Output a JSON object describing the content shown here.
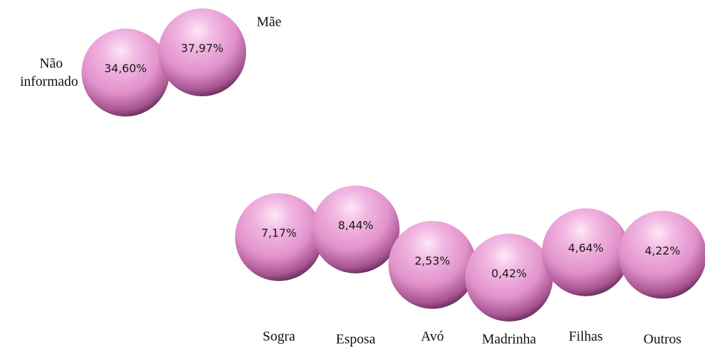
{
  "chart_data": {
    "type": "scatter",
    "categories": [
      "Não informado",
      "Mãe",
      "Sogra",
      "Esposa",
      "Avó",
      "Madrinha",
      "Filhas",
      "Outros"
    ],
    "values": [
      34.6,
      37.97,
      7.17,
      8.44,
      2.53,
      0.42,
      4.64,
      4.22
    ],
    "value_labels": [
      "34,60%",
      "37,97%",
      "7,17%",
      "8,44%",
      "2,53%",
      "0,42%",
      "4,64%",
      "4,22%"
    ],
    "color": "#e89bd3",
    "ylim": [
      0,
      40
    ]
  }
}
